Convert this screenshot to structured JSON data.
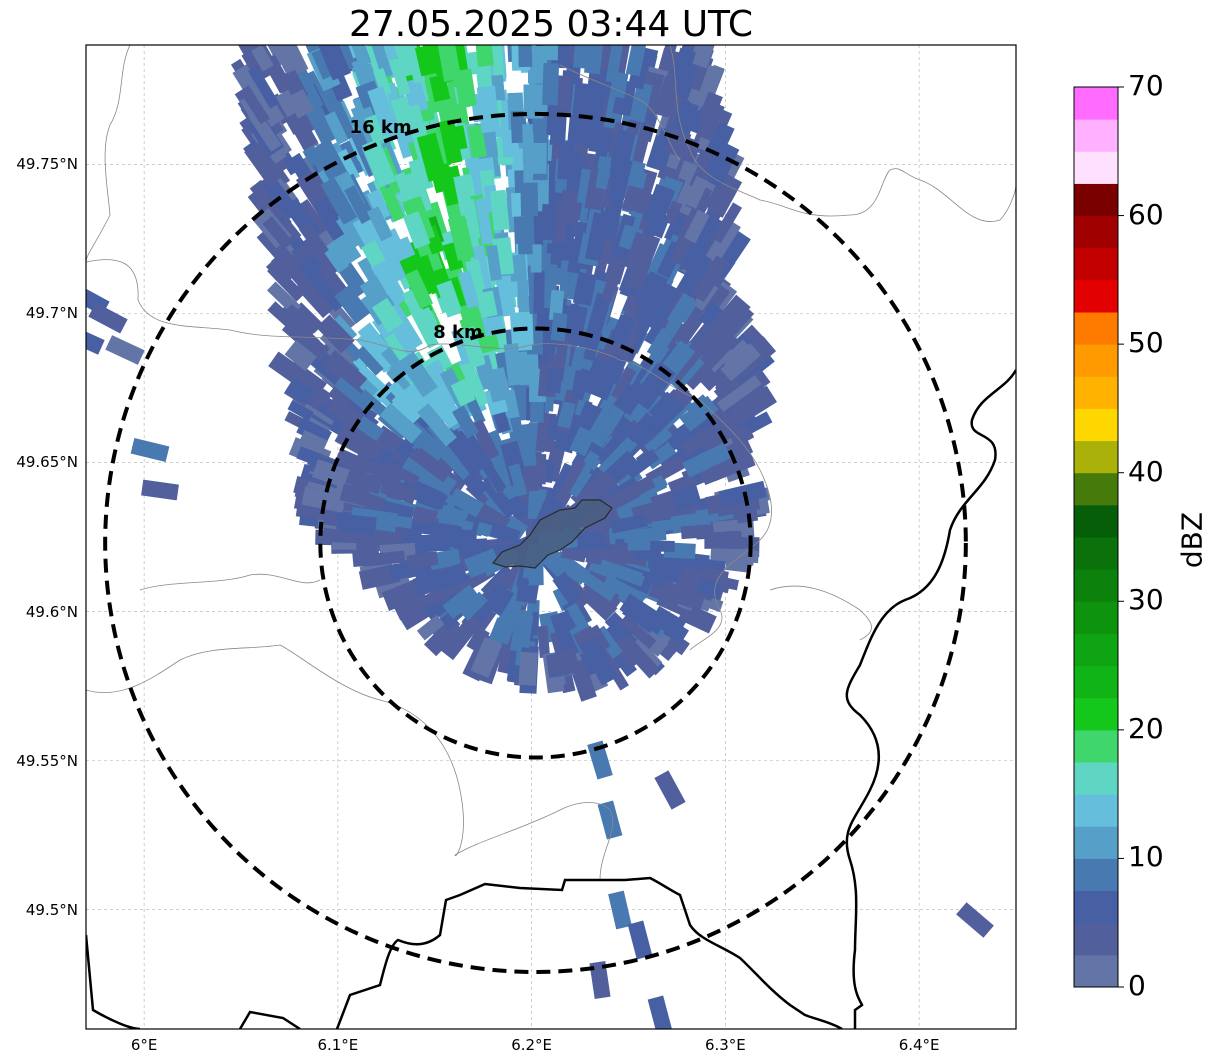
{
  "title": "27.05.2025 03:44 UTC",
  "map": {
    "lon_range": [
      5.97,
      6.45
    ],
    "lat_range": [
      49.46,
      49.79
    ],
    "radar_center": {
      "lon": 6.202,
      "lat": 49.623
    },
    "rings": [
      {
        "label": "8 km",
        "radius_km": 8
      },
      {
        "label": "16 km",
        "radius_km": 16
      }
    ],
    "lon_ticks": [
      "6°E",
      "6.1°E",
      "6.2°E",
      "6.3°E",
      "6.4°E"
    ],
    "lat_ticks": [
      "49.75°N",
      "49.7°N",
      "49.65°N",
      "49.6°N",
      "49.55°N",
      "49.5°N"
    ],
    "grid": true,
    "city_outline": "shaded polygon near radar center"
  },
  "colorbar": {
    "label": "dBZ",
    "range": [
      0,
      70
    ],
    "step": 2.5,
    "tick_labels": [
      "0",
      "10",
      "20",
      "30",
      "40",
      "50",
      "60",
      "70"
    ],
    "colors": [
      "#6275a6",
      "#525f9d",
      "#4660a3",
      "#4879b1",
      "#569fc8",
      "#65bedb",
      "#5fd5c4",
      "#3fd66b",
      "#13c81a",
      "#11b416",
      "#0fa412",
      "#0e930f",
      "#0c820d",
      "#0a710b",
      "#065f08",
      "#467a0b",
      "#aab20a",
      "#ffd700",
      "#ffb300",
      "#ff9a00",
      "#ff7b00",
      "#e30000",
      "#c30000",
      "#a10000",
      "#7a0000",
      "#ffe0ff",
      "#ffb0ff",
      "#ff6cff",
      "#f032f0"
    ]
  }
}
